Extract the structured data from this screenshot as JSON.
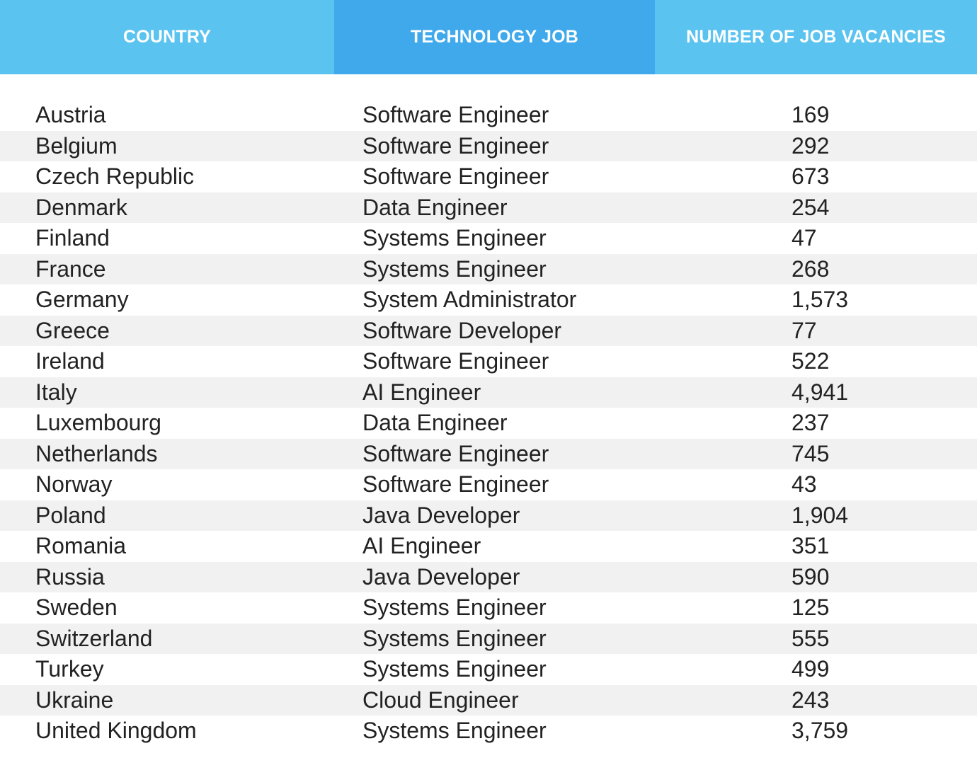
{
  "table": {
    "headers": {
      "country": "COUNTRY",
      "job": "TECHNOLOGY JOB",
      "vacancies": "NUMBER OF JOB VACANCIES"
    },
    "rows": [
      {
        "country": "Austria",
        "job": "Software Engineer",
        "vacancies": "169"
      },
      {
        "country": "Belgium",
        "job": "Software Engineer",
        "vacancies": "292"
      },
      {
        "country": "Czech Republic",
        "job": "Software Engineer",
        "vacancies": "673"
      },
      {
        "country": "Denmark",
        "job": "Data Engineer",
        "vacancies": "254"
      },
      {
        "country": "Finland",
        "job": "Systems Engineer",
        "vacancies": "47"
      },
      {
        "country": "France",
        "job": "Systems Engineer",
        "vacancies": "268"
      },
      {
        "country": "Germany",
        "job": "System Administrator",
        "vacancies": "1,573"
      },
      {
        "country": "Greece",
        "job": "Software Developer",
        "vacancies": "77"
      },
      {
        "country": "Ireland",
        "job": "Software Engineer",
        "vacancies": "522"
      },
      {
        "country": "Italy",
        "job": "AI Engineer",
        "vacancies": "4,941"
      },
      {
        "country": "Luxembourg",
        "job": "Data Engineer",
        "vacancies": "237"
      },
      {
        "country": "Netherlands",
        "job": "Software Engineer",
        "vacancies": "745"
      },
      {
        "country": "Norway",
        "job": "Software Engineer",
        "vacancies": "43"
      },
      {
        "country": "Poland",
        "job": "Java Developer",
        "vacancies": "1,904"
      },
      {
        "country": "Romania",
        "job": "AI Engineer",
        "vacancies": "351"
      },
      {
        "country": "Russia",
        "job": "Java Developer",
        "vacancies": "590"
      },
      {
        "country": "Sweden",
        "job": "Systems Engineer",
        "vacancies": "125"
      },
      {
        "country": "Switzerland",
        "job": "Systems Engineer",
        "vacancies": "555"
      },
      {
        "country": "Turkey",
        "job": "Systems Engineer",
        "vacancies": "499"
      },
      {
        "country": "Ukraine",
        "job": "Cloud Engineer",
        "vacancies": "243"
      },
      {
        "country": "United Kingdom",
        "job": "Systems Engineer",
        "vacancies": "3,759"
      }
    ],
    "colors": {
      "header_side": "#5bc3f0",
      "header_middle": "#3fa9ec",
      "stripe": "#f1f1f1",
      "text": "#222222"
    }
  }
}
